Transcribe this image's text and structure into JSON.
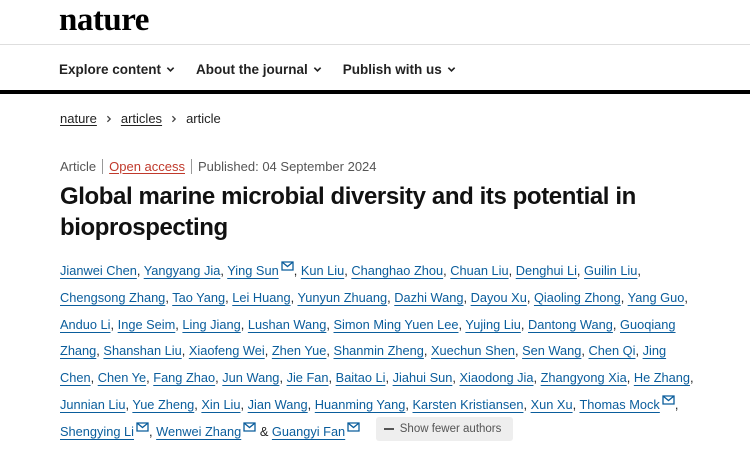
{
  "header": {
    "logo": "nature"
  },
  "nav": {
    "items": [
      {
        "label": "Explore content"
      },
      {
        "label": "About the journal"
      },
      {
        "label": "Publish with us"
      }
    ]
  },
  "breadcrumb": {
    "items": [
      "nature",
      "articles",
      "article"
    ]
  },
  "article": {
    "type": "Article",
    "access": "Open access",
    "published": "Published: 04 September 2024",
    "title": "Global marine microbial diversity and its potential in bioprospecting",
    "authors": [
      {
        "name": "Jianwei Chen",
        "mail": false
      },
      {
        "name": "Yangyang Jia",
        "mail": false
      },
      {
        "name": "Ying Sun",
        "mail": true
      },
      {
        "name": "Kun Liu",
        "mail": false
      },
      {
        "name": "Changhao Zhou",
        "mail": false
      },
      {
        "name": "Chuan Liu",
        "mail": false
      },
      {
        "name": "Denghui Li",
        "mail": false
      },
      {
        "name": "Guilin Liu",
        "mail": false
      },
      {
        "name": "Chengsong Zhang",
        "mail": false
      },
      {
        "name": "Tao Yang",
        "mail": false
      },
      {
        "name": "Lei Huang",
        "mail": false
      },
      {
        "name": "Yunyun Zhuang",
        "mail": false
      },
      {
        "name": "Dazhi Wang",
        "mail": false
      },
      {
        "name": "Dayou Xu",
        "mail": false
      },
      {
        "name": "Qiaoling Zhong",
        "mail": false
      },
      {
        "name": "Yang Guo",
        "mail": false
      },
      {
        "name": "Anduo Li",
        "mail": false
      },
      {
        "name": "Inge Seim",
        "mail": false
      },
      {
        "name": "Ling Jiang",
        "mail": false
      },
      {
        "name": "Lushan Wang",
        "mail": false
      },
      {
        "name": "Simon Ming Yuen Lee",
        "mail": false
      },
      {
        "name": "Yujing Liu",
        "mail": false
      },
      {
        "name": "Dantong Wang",
        "mail": false
      },
      {
        "name": "Guoqiang Zhang",
        "mail": false
      },
      {
        "name": "Shanshan Liu",
        "mail": false
      },
      {
        "name": "Xiaofeng Wei",
        "mail": false
      },
      {
        "name": "Zhen Yue",
        "mail": false
      },
      {
        "name": "Shanmin Zheng",
        "mail": false
      },
      {
        "name": "Xuechun Shen",
        "mail": false
      },
      {
        "name": "Sen Wang",
        "mail": false
      },
      {
        "name": "Chen Qi",
        "mail": false
      },
      {
        "name": "Jing Chen",
        "mail": false
      },
      {
        "name": "Chen Ye",
        "mail": false
      },
      {
        "name": "Fang Zhao",
        "mail": false
      },
      {
        "name": "Jun Wang",
        "mail": false
      },
      {
        "name": "Jie Fan",
        "mail": false
      },
      {
        "name": "Baitao Li",
        "mail": false
      },
      {
        "name": "Jiahui Sun",
        "mail": false
      },
      {
        "name": "Xiaodong Jia",
        "mail": false
      },
      {
        "name": "Zhangyong Xia",
        "mail": false
      },
      {
        "name": "He Zhang",
        "mail": false
      },
      {
        "name": "Junnian Liu",
        "mail": false
      },
      {
        "name": "Yue Zheng",
        "mail": false
      },
      {
        "name": "Xin Liu",
        "mail": false
      },
      {
        "name": "Jian Wang",
        "mail": false
      },
      {
        "name": "Huanming Yang",
        "mail": false
      },
      {
        "name": "Karsten Kristiansen",
        "mail": false
      },
      {
        "name": "Xun Xu",
        "mail": false
      },
      {
        "name": "Thomas Mock",
        "mail": true
      },
      {
        "name": "Shengying Li",
        "mail": true
      },
      {
        "name": "Wenwei Zhang",
        "mail": true
      },
      {
        "name": "Guangyi Fan",
        "mail": true
      }
    ],
    "final_conjunction": "&",
    "show_fewer": "Show fewer authors"
  },
  "colors": {
    "author_link": "#0a5d9c",
    "open_access": "#c0392b",
    "rule": "#000000"
  },
  "icons": {
    "nav_dropdown": "chevron-down-icon",
    "breadcrumb_separator": "chevron-right-icon",
    "author_contact": "mail-icon",
    "collapse": "minus-icon"
  }
}
